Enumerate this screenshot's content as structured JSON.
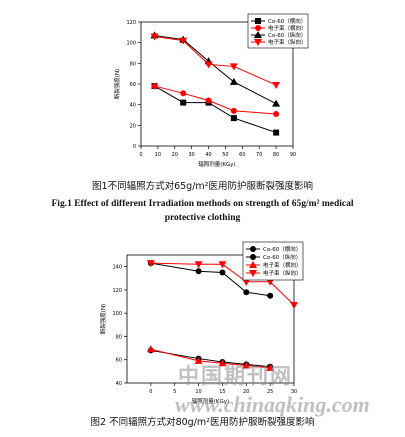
{
  "figure1": {
    "caption_cn": "图1不同辐照方式对65g/m²医用防护服断裂强度影响",
    "caption_en": "Fig.1 Effect of different Irradiation methods on strength of 65g/m² medical protective clothing",
    "chart_data": {
      "type": "line",
      "xlabel": "辐照剂量(KGy)",
      "ylabel": "断裂强度(N)",
      "xlim": [
        0,
        90
      ],
      "ylim": [
        0,
        120
      ],
      "xticks": [
        0,
        10,
        20,
        30,
        40,
        50,
        60,
        70,
        80,
        90
      ],
      "yticks": [
        0,
        20,
        40,
        60,
        80,
        100,
        120
      ],
      "legend_position": "top-right",
      "series": [
        {
          "name": "Co-60（横向）",
          "color": "#000000",
          "marker": "square",
          "x": [
            8,
            25,
            40,
            55,
            80
          ],
          "y": [
            58,
            42,
            42,
            27,
            13
          ]
        },
        {
          "name": "电子束（横向）",
          "color": "#ff0000",
          "marker": "circle",
          "x": [
            8,
            25,
            40,
            55,
            80
          ],
          "y": [
            58,
            51,
            44,
            34,
            31
          ]
        },
        {
          "name": "Co-60（纵向）",
          "color": "#000000",
          "marker": "triangle-up",
          "x": [
            8,
            25,
            40,
            55,
            80
          ],
          "y": [
            107,
            103,
            82,
            62,
            41
          ]
        },
        {
          "name": "电子束（纵向）",
          "color": "#ff0000",
          "marker": "triangle-down",
          "x": [
            8,
            25,
            40,
            55,
            80
          ],
          "y": [
            106,
            102,
            79,
            77,
            59
          ]
        }
      ]
    }
  },
  "figure2": {
    "caption_cn": "图2 不同辐照方式对80g/m²医用防护服断裂强度影响",
    "chart_data": {
      "type": "line",
      "xlabel": "辐照剂量(KGy)",
      "ylabel": "断裂强度(N)",
      "xlim": [
        -5,
        30
      ],
      "ylim": [
        40,
        150
      ],
      "xticks": [
        0,
        5,
        10,
        15,
        20,
        25,
        30
      ],
      "yticks": [
        40,
        60,
        80,
        100,
        120,
        140
      ],
      "legend_position": "top-right",
      "series": [
        {
          "name": "Co-60（横向）",
          "color": "#000000",
          "marker": "circle",
          "x": [
            0,
            10,
            15,
            20,
            25
          ],
          "y": [
            68,
            61,
            58,
            56,
            54
          ]
        },
        {
          "name": "Co-60（纵向）",
          "color": "#000000",
          "marker": "circle",
          "x": [
            0,
            10,
            15,
            20,
            25
          ],
          "y": [
            143,
            136,
            135,
            118,
            115
          ]
        },
        {
          "name": "电子束（横向）",
          "color": "#ff0000",
          "marker": "triangle-up",
          "x": [
            0,
            10,
            15,
            20,
            25
          ],
          "y": [
            69,
            59,
            57,
            55,
            53
          ]
        },
        {
          "name": "电子束（纵向）",
          "color": "#ff0000",
          "marker": "triangle-down",
          "x": [
            0,
            10,
            15,
            20,
            25,
            30
          ],
          "y": [
            143,
            142,
            142,
            127,
            127,
            107
          ]
        }
      ]
    }
  },
  "watermark": {
    "line1": "中国期刊网",
    "line2": "www.chinaqking.com"
  }
}
